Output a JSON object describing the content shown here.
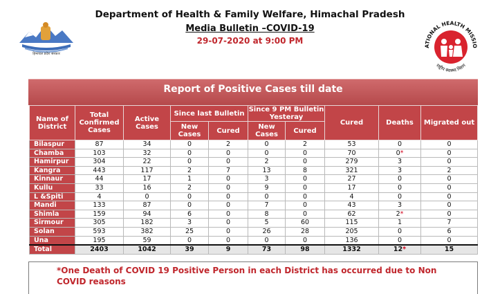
{
  "header": {
    "line1": "Department of Health & Family Welfare, Himachal Pradesh",
    "line2": "Media Bulletin –COVID-19",
    "line3": "29-07-2020 at 9:00 PM"
  },
  "logos": {
    "left_caption": "हिमाचल प्रदेश सरकार",
    "right_text_top": "NATIONAL HEALTH MISSION",
    "right_text_bottom": "राष्ट्रीय स्वास्थ्य मिशन"
  },
  "colors": {
    "banner": "#c24548",
    "note_text": "#c0272d"
  },
  "report": {
    "title": "Report of Positive Cases till date",
    "headers": {
      "district": "Name of District",
      "total_confirmed": "Total Confirmed Cases",
      "active": "Active Cases",
      "since_last_bulletin": "Since last Bulletin",
      "since_9pm": "Since 9 PM Bulletin Yesteray",
      "new_cases": "New Cases",
      "cured_sub": "Cured",
      "cured": "Cured",
      "deaths": "Deaths",
      "migrated": "Migrated out"
    },
    "rows": [
      {
        "district": "Bilaspur",
        "total": "87",
        "active": "34",
        "new1": "0",
        "cured1": "2",
        "new2": "0",
        "cured2": "2",
        "cured": "53",
        "deaths": "0",
        "deaths_mark": "",
        "migrated": "0"
      },
      {
        "district": "Chamba",
        "total": "103",
        "active": "32",
        "new1": "0",
        "cured1": "0",
        "new2": "0",
        "cured2": "0",
        "cured": "70",
        "deaths": "0",
        "deaths_mark": "*",
        "migrated": "0"
      },
      {
        "district": "Hamirpur",
        "total": "304",
        "active": "22",
        "new1": "0",
        "cured1": "0",
        "new2": "2",
        "cured2": "0",
        "cured": "279",
        "deaths": "3",
        "deaths_mark": "",
        "migrated": "0"
      },
      {
        "district": "Kangra",
        "total": "443",
        "active": "117",
        "new1": "2",
        "cured1": "7",
        "new2": "13",
        "cured2": "8",
        "cured": "321",
        "deaths": "3",
        "deaths_mark": "",
        "migrated": "2"
      },
      {
        "district": "Kinnaur",
        "total": "44",
        "active": "17",
        "new1": "1",
        "cured1": "0",
        "new2": "3",
        "cured2": "0",
        "cured": "27",
        "deaths": "0",
        "deaths_mark": "",
        "migrated": "0"
      },
      {
        "district": "Kullu",
        "total": "33",
        "active": "16",
        "new1": "2",
        "cured1": "0",
        "new2": "9",
        "cured2": "0",
        "cured": "17",
        "deaths": "0",
        "deaths_mark": "",
        "migrated": "0"
      },
      {
        "district": "L &Spiti",
        "total": "4",
        "active": "0",
        "new1": "0",
        "cured1": "0",
        "new2": "0",
        "cured2": "0",
        "cured": "4",
        "deaths": "0",
        "deaths_mark": "",
        "migrated": "0"
      },
      {
        "district": "Mandi",
        "total": "133",
        "active": "87",
        "new1": "0",
        "cured1": "0",
        "new2": "7",
        "cured2": "0",
        "cured": "43",
        "deaths": "3",
        "deaths_mark": "",
        "migrated": "0"
      },
      {
        "district": "Shimla",
        "total": "159",
        "active": "94",
        "new1": "6",
        "cured1": "0",
        "new2": "8",
        "cured2": "0",
        "cured": "62",
        "deaths": "2",
        "deaths_mark": "*",
        "migrated": "0"
      },
      {
        "district": "Sirmour",
        "total": "305",
        "active": "182",
        "new1": "3",
        "cured1": "0",
        "new2": "5",
        "cured2": "60",
        "cured": "115",
        "deaths": "1",
        "deaths_mark": "",
        "migrated": "7"
      },
      {
        "district": "Solan",
        "total": "593",
        "active": "382",
        "new1": "25",
        "cured1": "0",
        "new2": "26",
        "cured2": "28",
        "cured": "205",
        "deaths": "0",
        "deaths_mark": "",
        "migrated": "6"
      },
      {
        "district": "Una",
        "total": "195",
        "active": "59",
        "new1": "0",
        "cured1": "0",
        "new2": "0",
        "cured2": "0",
        "cured": "136",
        "deaths": "0",
        "deaths_mark": "",
        "migrated": "0"
      }
    ],
    "total": {
      "district": "Total",
      "total": "2403",
      "active": "1042",
      "new1": "39",
      "cured1": "9",
      "new2": "73",
      "cured2": "98",
      "cured": "1332",
      "deaths": "12",
      "deaths_mark": "*",
      "migrated": "15"
    }
  },
  "note": "*One Death of COVID 19 Positive Person in each District has occurred due to Non COVID reasons"
}
